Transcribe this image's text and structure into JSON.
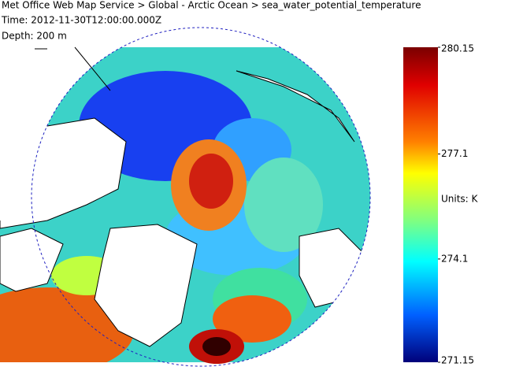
{
  "header": {
    "title": "Met Office Web Map Service > Global - Arctic Ocean > sea_water_potential_temperature",
    "time": "Time: 2012-11-30T12:00:00.000Z",
    "depth": "Depth: 200 m"
  },
  "colorbar": {
    "range": [
      271.15,
      280.15
    ],
    "ticks": [
      280.15,
      277.1,
      274.1,
      271.15
    ],
    "units_label": "Units: K"
  }
}
